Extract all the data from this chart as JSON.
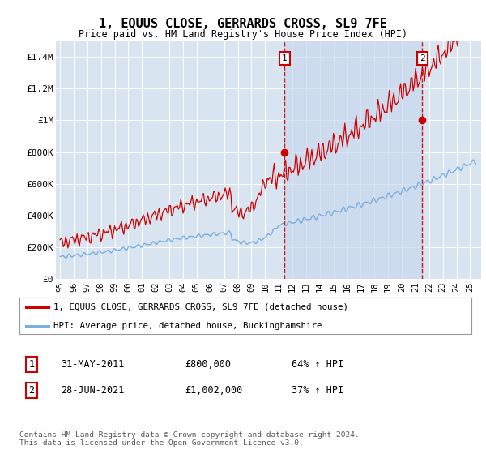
{
  "title": "1, EQUUS CLOSE, GERRARDS CROSS, SL9 7FE",
  "subtitle": "Price paid vs. HM Land Registry's House Price Index (HPI)",
  "plot_bg_color": "#d8e4f0",
  "shaded_region_color": "#ccddf0",
  "ylabel_ticks": [
    "£0",
    "£200K",
    "£400K",
    "£600K",
    "£800K",
    "£1M",
    "£1.2M",
    "£1.4M"
  ],
  "ytick_values": [
    0,
    200000,
    400000,
    600000,
    800000,
    1000000,
    1200000,
    1400000
  ],
  "ylim": [
    0,
    1500000
  ],
  "xlim_start": 1994.7,
  "xlim_end": 2025.8,
  "sale1_x": 2011.42,
  "sale1_y": 800000,
  "sale1_label": "1",
  "sale2_x": 2021.5,
  "sale2_y": 1002000,
  "sale2_label": "2",
  "legend_line1": "1, EQUUS CLOSE, GERRARDS CROSS, SL9 7FE (detached house)",
  "legend_line2": "HPI: Average price, detached house, Buckinghamshire",
  "table_row1_num": "1",
  "table_row1_date": "31-MAY-2011",
  "table_row1_price": "£800,000",
  "table_row1_hpi": "64% ↑ HPI",
  "table_row2_num": "2",
  "table_row2_date": "28-JUN-2021",
  "table_row2_price": "£1,002,000",
  "table_row2_hpi": "37% ↑ HPI",
  "footnote": "Contains HM Land Registry data © Crown copyright and database right 2024.\nThis data is licensed under the Open Government Licence v3.0.",
  "red_color": "#cc0000",
  "blue_color": "#7aaedc",
  "marker_box_color": "#cc0000",
  "fig_width": 6.0,
  "fig_height": 5.6,
  "dpi": 100
}
